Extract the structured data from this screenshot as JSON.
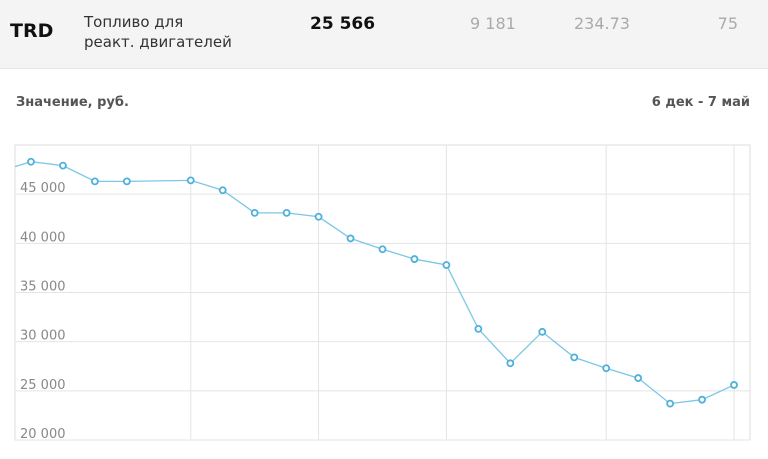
{
  "header": {
    "ticker": "TRD",
    "name": [
      "Топливо для",
      "реакт. двигателей"
    ],
    "price": "25 566",
    "col2": "9 181",
    "col3": "234.73",
    "col4": "75"
  },
  "chart_data": {
    "type": "line",
    "title": "Значение, руб.",
    "subtitle": "6 дек - 7 май",
    "x": [
      0.5,
      1,
      2,
      3,
      4,
      6,
      7,
      8,
      9,
      10,
      11,
      12,
      13,
      14,
      15,
      16,
      17,
      18,
      19,
      20,
      21,
      22,
      23
    ],
    "values": [
      47800,
      48300,
      47900,
      46300,
      46300,
      46400,
      45400,
      43100,
      43100,
      42700,
      40500,
      39400,
      38400,
      37800,
      31300,
      27800,
      31000,
      28400,
      27300,
      26300,
      23700,
      24100,
      25600
    ],
    "color": "#7cc6e6",
    "xlim": [
      0.5,
      23.5
    ],
    "xticks": [
      6,
      10,
      14,
      19,
      23
    ],
    "ylim": [
      20000,
      50000
    ],
    "yticks": [
      {
        "value": 20000,
        "label": "20 000"
      },
      {
        "value": 25000,
        "label": "25 000"
      },
      {
        "value": 30000,
        "label": "30 000"
      },
      {
        "value": 35000,
        "label": "35 000"
      },
      {
        "value": 40000,
        "label": "40 000"
      },
      {
        "value": 45000,
        "label": "45 000"
      }
    ],
    "grid": true
  }
}
